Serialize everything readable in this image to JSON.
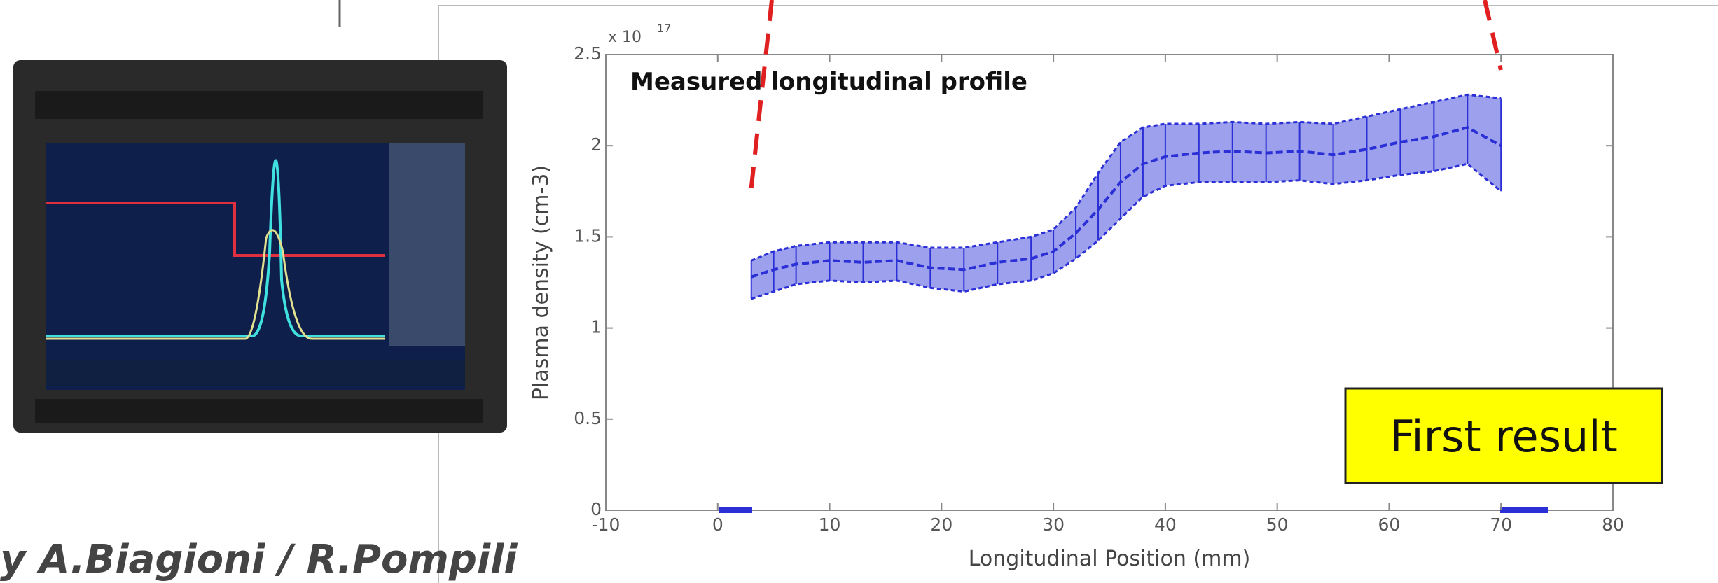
{
  "chart_data": {
    "type": "band-line",
    "title": "Measured longitudinal profile",
    "y_exponent_base": "x 10",
    "y_exponent_power": "17",
    "xlabel": "Longitudinal Position (mm)",
    "ylabel": "Plasma density (cm-3)",
    "annotation": "First result",
    "credit": "y A.Biagioni / R.Pompili",
    "x": [
      3,
      5,
      7,
      10,
      13,
      16,
      19,
      22,
      25,
      28,
      30,
      32,
      34,
      36,
      38,
      40,
      43,
      46,
      49,
      52,
      55,
      58,
      61,
      64,
      67,
      70
    ],
    "series": [
      {
        "color": "#2b2fd6",
        "values": [
          1.28,
          1.32,
          1.35,
          1.37,
          1.36,
          1.37,
          1.33,
          1.32,
          1.36,
          1.38,
          1.42,
          1.52,
          1.65,
          1.8,
          1.9,
          1.94,
          1.96,
          1.97,
          1.96,
          1.97,
          1.95,
          1.98,
          2.02,
          2.05,
          2.1,
          2.0
        ],
        "upper": [
          1.37,
          1.42,
          1.45,
          1.47,
          1.47,
          1.47,
          1.44,
          1.44,
          1.47,
          1.5,
          1.54,
          1.66,
          1.85,
          2.02,
          2.1,
          2.12,
          2.12,
          2.13,
          2.12,
          2.13,
          2.12,
          2.16,
          2.2,
          2.24,
          2.28,
          2.26
        ],
        "lower": [
          1.16,
          1.2,
          1.24,
          1.26,
          1.25,
          1.26,
          1.22,
          1.2,
          1.24,
          1.26,
          1.3,
          1.38,
          1.48,
          1.6,
          1.72,
          1.78,
          1.8,
          1.8,
          1.8,
          1.81,
          1.79,
          1.81,
          1.84,
          1.86,
          1.9,
          1.75
        ]
      }
    ],
    "xlim": [
      -10,
      80
    ],
    "xticks": [
      -10,
      0,
      10,
      20,
      30,
      40,
      50,
      60,
      70,
      80
    ],
    "ylim": [
      0,
      2.5
    ],
    "yticks": [
      0,
      0.5,
      1,
      1.5,
      2,
      2.5
    ],
    "band_color": "#7c80e6"
  }
}
